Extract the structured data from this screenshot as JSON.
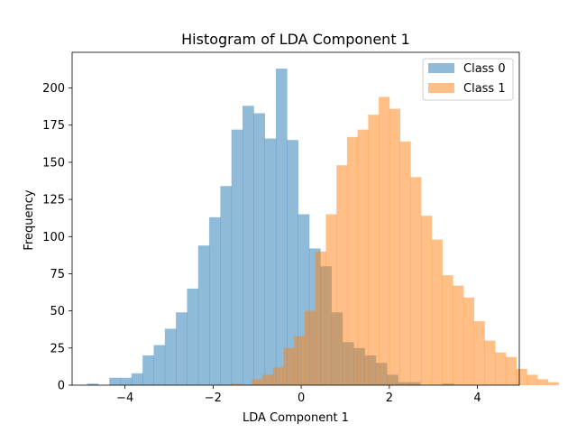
{
  "chart_data": {
    "type": "bar",
    "subtype": "overlaid-histogram",
    "title": "Histogram of LDA Component 1",
    "xlabel": "LDA Component 1",
    "ylabel": "Frequency",
    "xlim": [
      -5.2,
      4.95
    ],
    "ylim": [
      0,
      224
    ],
    "xticks": [
      -4,
      -2,
      0,
      2,
      4
    ],
    "yticks": [
      0,
      25,
      50,
      75,
      100,
      125,
      150,
      175,
      200
    ],
    "grid": false,
    "legend_position": "top-right",
    "series": [
      {
        "name": "Class 0",
        "color": "#1f77b4",
        "alpha": 0.5,
        "bin_start": -4.86,
        "bin_width": 0.252,
        "values": [
          1,
          0,
          5,
          5,
          8,
          20,
          27,
          38,
          49,
          65,
          94,
          113,
          134,
          172,
          188,
          183,
          166,
          213,
          165,
          115,
          92,
          80,
          49,
          29,
          25,
          20,
          15,
          7,
          2,
          2,
          0,
          0,
          1
        ]
      },
      {
        "name": "Class 1",
        "color": "#ff7f0e",
        "alpha": 0.5,
        "bin_start": -1.6,
        "bin_width": 0.24,
        "values": [
          1,
          0,
          4,
          7,
          12,
          25,
          33,
          50,
          90,
          115,
          148,
          167,
          172,
          182,
          194,
          186,
          164,
          140,
          114,
          98,
          74,
          67,
          59,
          43,
          30,
          22,
          19,
          11,
          7,
          4,
          2
        ]
      }
    ]
  }
}
